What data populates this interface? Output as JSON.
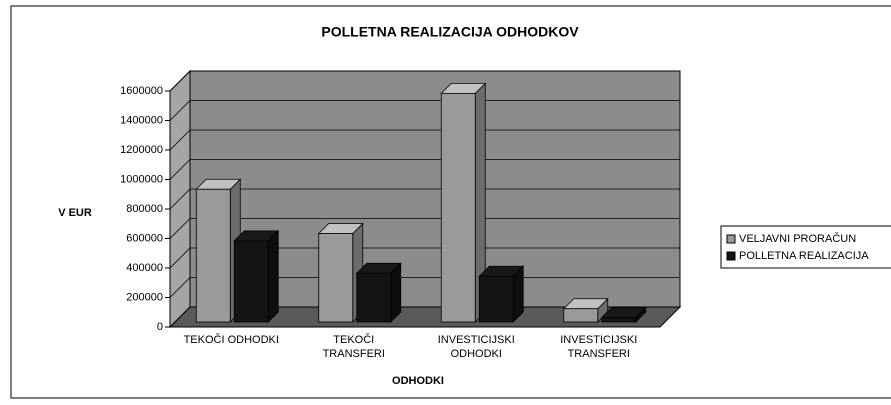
{
  "chart_data": {
    "type": "bar3d",
    "title": "POLLETNA REALIZACIJA ODHODKOV",
    "y_label": "V EUR",
    "x_label": "ODHODKI",
    "categories": [
      [
        "TEKOČI ODHODKI"
      ],
      [
        "TEKOČI",
        "TRANSFERI"
      ],
      [
        "INVESTICIJSKI",
        "ODHODKI"
      ],
      [
        "INVESTICIJSKI",
        "TRANSFERI"
      ]
    ],
    "series": [
      {
        "name": "VELJAVNI PRORAČUN",
        "color": "#9a9a9a",
        "values": [
          900000,
          600000,
          1550000,
          90000
        ]
      },
      {
        "name": "POLLETNA REALIZACIJA",
        "color": "#141414",
        "values": [
          550000,
          330000,
          310000,
          30000
        ]
      }
    ],
    "ylim": [
      0,
      1600000
    ],
    "yticks": [
      0,
      200000,
      400000,
      600000,
      800000,
      1000000,
      1200000,
      1400000,
      1600000
    ],
    "grid": true,
    "legend": "right"
  }
}
